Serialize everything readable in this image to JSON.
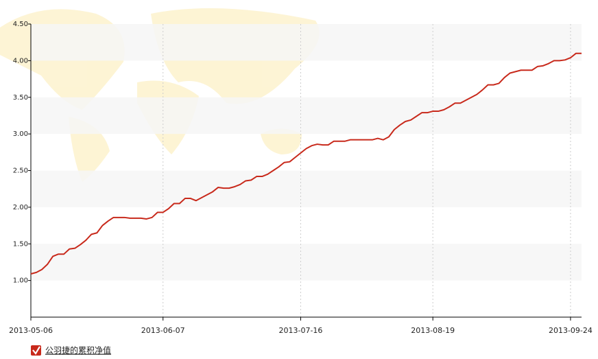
{
  "chart_data": {
    "type": "line",
    "categories": [
      "2013-05-06",
      null,
      null,
      null,
      null,
      null,
      null,
      null,
      null,
      null,
      null,
      null,
      null,
      null,
      null,
      null,
      null,
      null,
      null,
      null,
      null,
      null,
      null,
      null,
      "2013-06-07",
      null,
      null,
      null,
      null,
      null,
      null,
      null,
      null,
      null,
      null,
      null,
      null,
      null,
      null,
      null,
      null,
      null,
      null,
      null,
      null,
      null,
      null,
      null,
      null,
      "2013-07-16",
      null,
      null,
      null,
      null,
      null,
      null,
      null,
      null,
      null,
      null,
      null,
      null,
      null,
      null,
      null,
      null,
      null,
      null,
      null,
      null,
      null,
      null,
      null,
      "2013-08-19",
      null,
      null,
      null,
      null,
      null,
      null,
      null,
      null,
      null,
      null,
      null,
      null,
      null,
      null,
      null,
      null,
      null,
      null,
      null,
      null,
      null,
      null,
      null,
      null,
      "2013-09-24",
      null,
      null
    ],
    "series": [
      {
        "name": "公羽捷的累积净值",
        "color": "#c8291b",
        "values": [
          1.09,
          1.11,
          1.15,
          1.22,
          1.33,
          1.36,
          1.36,
          1.43,
          1.44,
          1.49,
          1.55,
          1.63,
          1.65,
          1.75,
          1.81,
          1.86,
          1.86,
          1.86,
          1.85,
          1.85,
          1.85,
          1.84,
          1.86,
          1.93,
          1.93,
          1.98,
          2.05,
          2.05,
          2.12,
          2.12,
          2.09,
          2.13,
          2.17,
          2.21,
          2.27,
          2.26,
          2.26,
          2.28,
          2.31,
          2.36,
          2.37,
          2.42,
          2.42,
          2.45,
          2.5,
          2.55,
          2.61,
          2.62,
          2.68,
          2.74,
          2.8,
          2.84,
          2.86,
          2.85,
          2.85,
          2.9,
          2.9,
          2.9,
          2.92,
          2.92,
          2.92,
          2.92,
          2.92,
          2.94,
          2.92,
          2.96,
          3.06,
          3.12,
          3.17,
          3.19,
          3.24,
          3.29,
          3.29,
          3.31,
          3.31,
          3.33,
          3.37,
          3.42,
          3.42,
          3.46,
          3.5,
          3.54,
          3.6,
          3.67,
          3.67,
          3.69,
          3.77,
          3.83,
          3.85,
          3.87,
          3.87,
          3.87,
          3.92,
          3.93,
          3.96,
          4.0,
          4.0,
          4.01,
          4.04,
          4.1,
          4.1
        ]
      }
    ],
    "ylim": [
      0.5,
      4.5
    ],
    "yticks": [
      {
        "value": 1,
        "label": "1.00"
      },
      {
        "value": 1.5,
        "label": "1.50"
      },
      {
        "value": 2,
        "label": "2.00"
      },
      {
        "value": 2.5,
        "label": "2.50"
      },
      {
        "value": 3,
        "label": "3.00"
      },
      {
        "value": 3.5,
        "label": "3.50"
      },
      {
        "value": 4,
        "label": "4.00"
      },
      {
        "value": 4.5,
        "label": "4.50"
      }
    ],
    "grid": true
  }
}
